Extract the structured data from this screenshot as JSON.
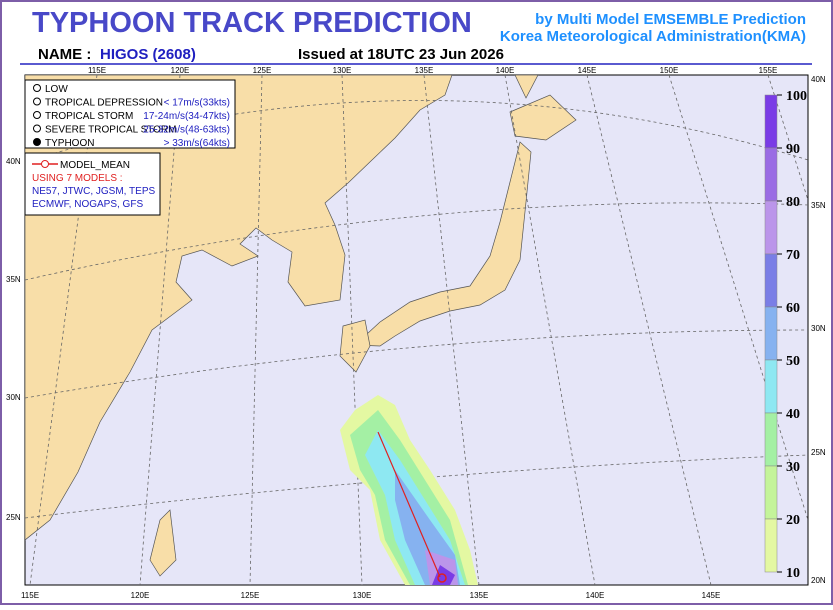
{
  "header": {
    "title": "TYPHOON TRACK PREDICTION",
    "subtitle_1": "by Multi Model EMSEMBLE Prediction",
    "subtitle_2": "Korea Meteorological Administration(KMA)",
    "name_label": "NAME :",
    "name": "HIGOS (2608)",
    "issued": "Issued at  18UTC 23 Jun 2026"
  },
  "legend": {
    "intensity": [
      {
        "name": "LOW",
        "range": null
      },
      {
        "name": "TROPICAL DEPRESSION",
        "range": "< 17m/s(33kts)"
      },
      {
        "name": "TROPICAL STORM",
        "range": "17-24m/s(34-47kts)"
      },
      {
        "name": "SEVERE TROPICAL STORM",
        "range": "25-32m/s(48-63kts)"
      },
      {
        "name": "TYPHOON",
        "range": "> 33m/s(64kts)"
      }
    ],
    "model_mean": "MODEL_MEAN",
    "models_title": "USING 7 MODELS :",
    "models_1": "NE57, JTWC, JGSM, TEPS",
    "models_2": "ECMWF, NOGAPS, GFS"
  },
  "map": {
    "lon_top": [
      "115E",
      "120E",
      "125E",
      "130E",
      "135E",
      "140E",
      "145E",
      "150E",
      "155E"
    ],
    "lon_bottom": [
      "115E",
      "120E",
      "125E",
      "130E",
      "135E",
      "140E",
      "145E"
    ],
    "lat_left": [
      "40N",
      "35N",
      "30N",
      "25N"
    ],
    "lat_right": [
      "40N",
      "35N",
      "30N",
      "25N",
      "20N"
    ]
  },
  "colorbar": {
    "labels": [
      "100",
      "90",
      "80",
      "70",
      "60",
      "50",
      "40",
      "30",
      "20",
      "10"
    ],
    "colors": [
      "#7a3ce6",
      "#9a6ce4",
      "#bb95ea",
      "#7a7ee6",
      "#86b2f0",
      "#8ee8f2",
      "#a4f0a4",
      "#c4f49a",
      "#e4f8a2"
    ]
  }
}
